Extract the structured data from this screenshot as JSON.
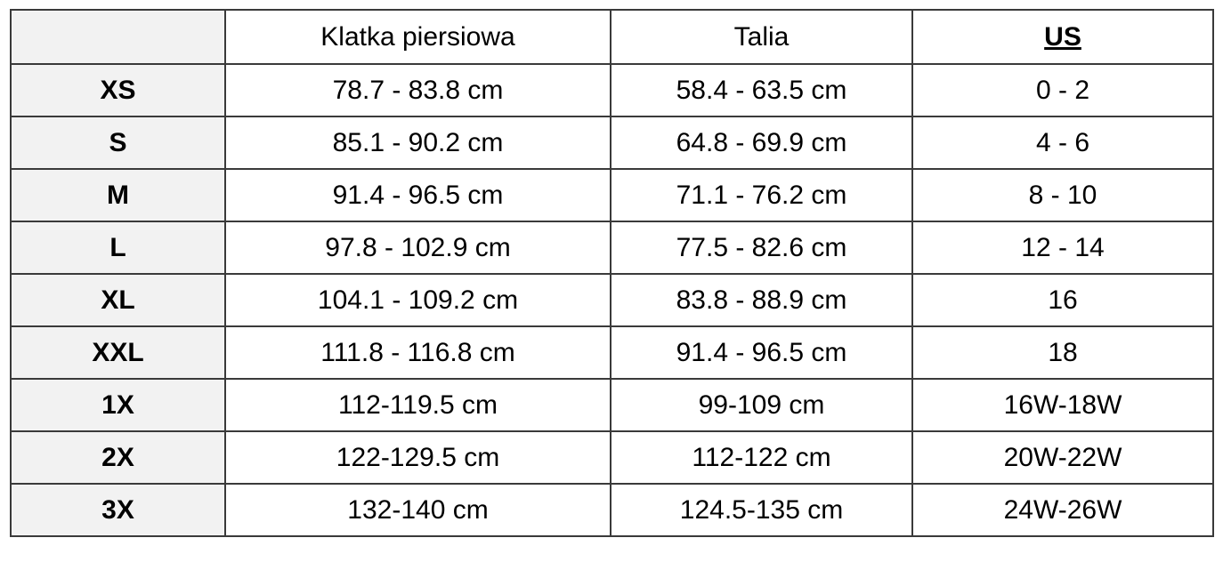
{
  "headers": {
    "corner": "",
    "chest": "Klatka piersiowa",
    "waist": "Talia",
    "us": "US"
  },
  "rows": [
    {
      "size": "XS",
      "chest": "78.7 - 83.8 cm",
      "waist": "58.4 - 63.5 cm",
      "us": "0 - 2"
    },
    {
      "size": "S",
      "chest": "85.1 - 90.2 cm",
      "waist": "64.8 - 69.9 cm",
      "us": "4 - 6"
    },
    {
      "size": "M",
      "chest": "91.4 - 96.5 cm",
      "waist": "71.1 - 76.2 cm",
      "us": "8 - 10"
    },
    {
      "size": "L",
      "chest": "97.8 - 102.9 cm",
      "waist": "77.5 - 82.6 cm",
      "us": "12 - 14"
    },
    {
      "size": "XL",
      "chest": "104.1 - 109.2 cm",
      "waist": "83.8 - 88.9 cm",
      "us": "16"
    },
    {
      "size": "XXL",
      "chest": "111.8 - 116.8 cm",
      "waist": "91.4 - 96.5 cm",
      "us": "18"
    },
    {
      "size": "1X",
      "chest": "112-119.5 cm",
      "waist": "99-109 cm",
      "us": "16W-18W"
    },
    {
      "size": "2X",
      "chest": "122-129.5 cm",
      "waist": "112-122 cm",
      "us": "20W-22W"
    },
    {
      "size": "3X",
      "chest": "132-140 cm",
      "waist": "124.5-135 cm",
      "us": "24W-26W"
    }
  ],
  "colors": {
    "label_background": "#f2f2f2",
    "border": "#3a3a3a",
    "text": "#000000"
  }
}
